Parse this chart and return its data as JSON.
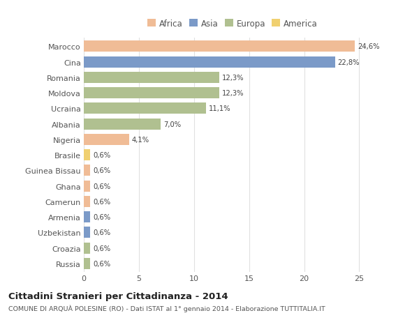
{
  "countries": [
    "Marocco",
    "Cina",
    "Romania",
    "Moldova",
    "Ucraina",
    "Albania",
    "Nigeria",
    "Brasile",
    "Guinea Bissau",
    "Ghana",
    "Camerun",
    "Armenia",
    "Uzbekistan",
    "Croazia",
    "Russia"
  ],
  "values": [
    24.6,
    22.8,
    12.3,
    12.3,
    11.1,
    7.0,
    4.1,
    0.6,
    0.6,
    0.6,
    0.6,
    0.6,
    0.6,
    0.6,
    0.6
  ],
  "labels": [
    "24,6%",
    "22,8%",
    "12,3%",
    "12,3%",
    "11,1%",
    "7,0%",
    "4,1%",
    "0,6%",
    "0,6%",
    "0,6%",
    "0,6%",
    "0,6%",
    "0,6%",
    "0,6%",
    "0,6%"
  ],
  "colors": [
    "#f0bc96",
    "#7b9ac8",
    "#b0c090",
    "#b0c090",
    "#b0c090",
    "#b0c090",
    "#f0bc96",
    "#f0d070",
    "#f0bc96",
    "#f0bc96",
    "#f0bc96",
    "#7b9ac8",
    "#7b9ac8",
    "#b0c090",
    "#b0c090"
  ],
  "legend_labels": [
    "Africa",
    "Asia",
    "Europa",
    "America"
  ],
  "legend_colors": [
    "#f0bc96",
    "#7b9ac8",
    "#b0c090",
    "#f0d070"
  ],
  "title": "Cittadini Stranieri per Cittadinanza - 2014",
  "subtitle": "COMUNE DI ARQUÀ POLESINE (RO) - Dati ISTAT al 1° gennaio 2014 - Elaborazione TUTTITALIA.IT",
  "xlim": [
    0,
    27
  ],
  "xticks": [
    0,
    5,
    10,
    15,
    20,
    25
  ],
  "background_color": "#ffffff",
  "grid_color": "#e0e0e0"
}
